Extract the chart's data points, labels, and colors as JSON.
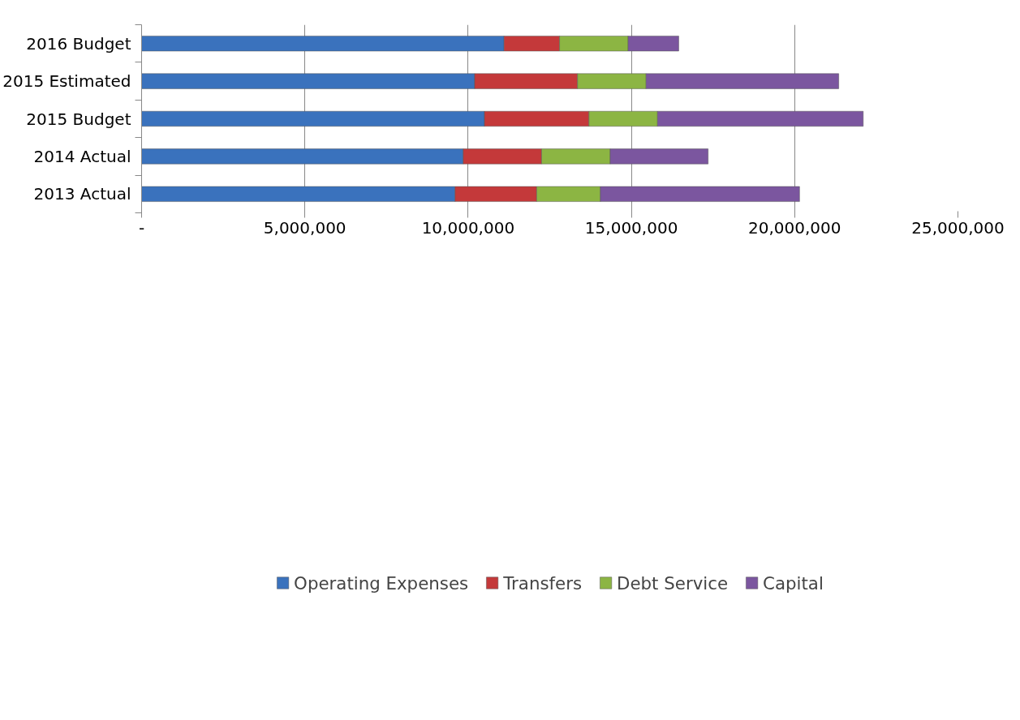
{
  "chart_data": {
    "type": "bar",
    "orientation": "horizontal",
    "stacked": true,
    "categories": [
      "2016 Budget",
      "2015 Estimated",
      "2015 Budget",
      "2014 Actual",
      "2013 Actual"
    ],
    "series": [
      {
        "name": "Operating Expenses",
        "color": "#3a72bd",
        "values": [
          11100000,
          10200000,
          10500000,
          9850000,
          9600000
        ]
      },
      {
        "name": "Transfers",
        "color": "#c4393a",
        "values": [
          1700000,
          3150000,
          3200000,
          2400000,
          2500000
        ]
      },
      {
        "name": "Debt Service",
        "color": "#8cb543",
        "values": [
          2100000,
          2100000,
          2100000,
          2100000,
          1950000
        ]
      },
      {
        "name": "Capital",
        "color": "#7b569f",
        "values": [
          1550000,
          5900000,
          6300000,
          3000000,
          6100000
        ]
      }
    ],
    "xlim": [
      0,
      25000000
    ],
    "xticks": [
      {
        "value": 0,
        "label": "-"
      },
      {
        "value": 5000000,
        "label": "5,000,000"
      },
      {
        "value": 10000000,
        "label": "10,000,000"
      },
      {
        "value": 15000000,
        "label": "15,000,000"
      },
      {
        "value": 20000000,
        "label": "20,000,000"
      },
      {
        "value": 25000000,
        "label": "25,000,000"
      }
    ],
    "grid": "x",
    "legend": "bottom"
  }
}
